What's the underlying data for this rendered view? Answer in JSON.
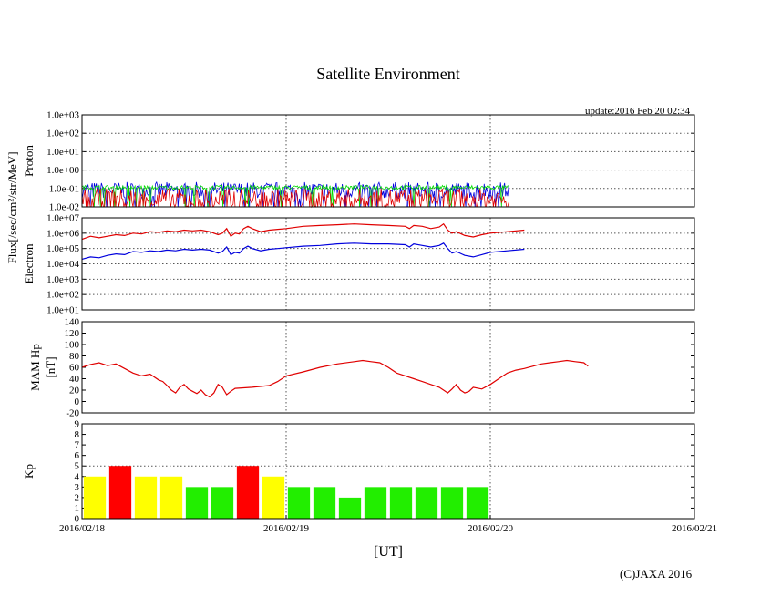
{
  "title": "Satellite Environment",
  "update_text": "update:2016 Feb 20 02:34",
  "copyright": "(C)JAXA 2016",
  "x_axis": {
    "label": "[UT]",
    "range_hours": [
      0,
      72
    ],
    "ticks": [
      {
        "hour": 0,
        "label": "2016/02/18"
      },
      {
        "hour": 24,
        "label": "2016/02/19"
      },
      {
        "hour": 48,
        "label": "2016/02/20"
      },
      {
        "hour": 72,
        "label": "2016/02/21"
      }
    ]
  },
  "flux_label": "Flux[/sec/cm²/str/MeV]",
  "colors": {
    "red": "#e00000",
    "blue": "#0000dd",
    "green": "#00dd00",
    "yellow": "#ffff00",
    "kp_red": "#ff0000",
    "kp_green": "#22ee00"
  },
  "chart_data": [
    {
      "name": "proton",
      "type": "line",
      "ylabel": "Proton",
      "yscale": "log",
      "ylim_exp": [
        -2,
        3
      ],
      "yticks": [
        "1.0e-02",
        "1.0e-01",
        "1.0e+00",
        "1.0e+01",
        "1.0e+02",
        "1.0e+03"
      ],
      "x_end_hours": 50.2,
      "series": [
        {
          "name": "blue",
          "color": "#0000dd",
          "base_exp": -1.1,
          "noise": 0.45
        },
        {
          "name": "green",
          "color": "#00dd00",
          "base_exp": -0.95,
          "noise": 0.12
        },
        {
          "name": "red",
          "color": "#e00000",
          "base_exp": -1.6,
          "noise": 0.6
        }
      ]
    },
    {
      "name": "electron",
      "type": "line",
      "ylabel": "Electron",
      "yscale": "log",
      "ylim_exp": [
        1,
        7
      ],
      "yticks": [
        "1.0e+01",
        "1.0e+02",
        "1.0e+03",
        "1.0e+04",
        "1.0e+05",
        "1.0e+06",
        "1.0e+07"
      ],
      "series": [
        {
          "name": "red",
          "color": "#e00000",
          "points": [
            [
              0,
              5.6
            ],
            [
              1,
              5.8
            ],
            [
              2,
              5.7
            ],
            [
              3,
              5.8
            ],
            [
              4,
              5.9
            ],
            [
              5,
              5.85
            ],
            [
              6,
              6.0
            ],
            [
              7,
              5.95
            ],
            [
              8,
              6.1
            ],
            [
              9,
              6.05
            ],
            [
              10,
              6.15
            ],
            [
              11,
              6.1
            ],
            [
              12,
              6.2
            ],
            [
              13,
              6.15
            ],
            [
              14,
              6.2
            ],
            [
              15,
              6.1
            ],
            [
              16,
              5.9
            ],
            [
              16.5,
              6.0
            ],
            [
              17,
              6.3
            ],
            [
              17.5,
              5.8
            ],
            [
              18,
              6.0
            ],
            [
              18.5,
              5.95
            ],
            [
              19,
              6.3
            ],
            [
              19.5,
              6.45
            ],
            [
              20,
              6.3
            ],
            [
              21,
              6.1
            ],
            [
              22,
              6.2
            ],
            [
              23,
              6.25
            ],
            [
              24,
              6.3
            ],
            [
              26,
              6.45
            ],
            [
              28,
              6.5
            ],
            [
              30,
              6.55
            ],
            [
              32,
              6.6
            ],
            [
              34,
              6.55
            ],
            [
              36,
              6.5
            ],
            [
              38,
              6.45
            ],
            [
              38.5,
              6.3
            ],
            [
              39,
              6.5
            ],
            [
              40,
              6.45
            ],
            [
              41,
              6.3
            ],
            [
              42,
              6.4
            ],
            [
              42.5,
              6.6
            ],
            [
              43,
              6.2
            ],
            [
              43.5,
              6.0
            ],
            [
              44,
              6.1
            ],
            [
              45,
              5.85
            ],
            [
              46,
              5.75
            ],
            [
              47,
              5.9
            ],
            [
              48,
              6.0
            ],
            [
              50,
              6.1
            ],
            [
              52,
              6.2
            ]
          ]
        },
        {
          "name": "blue",
          "color": "#0000dd",
          "points": [
            [
              0,
              4.3
            ],
            [
              1,
              4.45
            ],
            [
              2,
              4.4
            ],
            [
              3,
              4.55
            ],
            [
              4,
              4.65
            ],
            [
              5,
              4.6
            ],
            [
              6,
              4.8
            ],
            [
              7,
              4.75
            ],
            [
              8,
              4.85
            ],
            [
              9,
              4.8
            ],
            [
              10,
              4.9
            ],
            [
              11,
              4.85
            ],
            [
              12,
              4.95
            ],
            [
              13,
              4.9
            ],
            [
              14,
              4.95
            ],
            [
              15,
              4.9
            ],
            [
              16,
              4.7
            ],
            [
              16.5,
              4.8
            ],
            [
              17,
              5.1
            ],
            [
              17.5,
              4.6
            ],
            [
              18,
              4.75
            ],
            [
              18.5,
              4.7
            ],
            [
              19,
              5.0
            ],
            [
              19.5,
              5.15
            ],
            [
              20,
              5.0
            ],
            [
              21,
              4.85
            ],
            [
              22,
              4.95
            ],
            [
              23,
              5.0
            ],
            [
              24,
              5.05
            ],
            [
              26,
              5.15
            ],
            [
              28,
              5.2
            ],
            [
              30,
              5.3
            ],
            [
              32,
              5.35
            ],
            [
              34,
              5.3
            ],
            [
              36,
              5.3
            ],
            [
              38,
              5.25
            ],
            [
              38.5,
              5.1
            ],
            [
              39,
              5.3
            ],
            [
              40,
              5.2
            ],
            [
              41,
              5.1
            ],
            [
              42,
              5.2
            ],
            [
              42.5,
              5.35
            ],
            [
              43,
              5.0
            ],
            [
              43.5,
              4.7
            ],
            [
              44,
              4.8
            ],
            [
              45,
              4.55
            ],
            [
              46,
              4.45
            ],
            [
              47,
              4.6
            ],
            [
              48,
              4.75
            ],
            [
              50,
              4.85
            ],
            [
              52,
              4.95
            ]
          ]
        }
      ]
    },
    {
      "name": "mam_hp",
      "type": "line",
      "ylabel": "MAM Hp",
      "ylabel2": "[nT]",
      "ylim": [
        -20,
        140
      ],
      "yticks": [
        -20,
        0,
        20,
        40,
        60,
        80,
        100,
        120,
        140
      ],
      "series": [
        {
          "name": "hp",
          "color": "#e00000",
          "points": [
            [
              0,
              60
            ],
            [
              1,
              65
            ],
            [
              2,
              68
            ],
            [
              3,
              63
            ],
            [
              4,
              66
            ],
            [
              5,
              58
            ],
            [
              6,
              50
            ],
            [
              7,
              45
            ],
            [
              8,
              48
            ],
            [
              9,
              38
            ],
            [
              9.5,
              35
            ],
            [
              10,
              28
            ],
            [
              10.5,
              20
            ],
            [
              11,
              15
            ],
            [
              11.5,
              25
            ],
            [
              12,
              30
            ],
            [
              12.5,
              22
            ],
            [
              13,
              18
            ],
            [
              13.5,
              14
            ],
            [
              14,
              20
            ],
            [
              14.5,
              12
            ],
            [
              15,
              8
            ],
            [
              15.5,
              15
            ],
            [
              16,
              30
            ],
            [
              16.5,
              25
            ],
            [
              17,
              12
            ],
            [
              17.5,
              18
            ],
            [
              18,
              23
            ],
            [
              20,
              25
            ],
            [
              22,
              28
            ],
            [
              23,
              35
            ],
            [
              24,
              45
            ],
            [
              26,
              52
            ],
            [
              28,
              60
            ],
            [
              30,
              66
            ],
            [
              32,
              70
            ],
            [
              33,
              72
            ],
            [
              34,
              70
            ],
            [
              35,
              68
            ],
            [
              36,
              60
            ],
            [
              37,
              50
            ],
            [
              38,
              45
            ],
            [
              39,
              40
            ],
            [
              40,
              35
            ],
            [
              41,
              30
            ],
            [
              42,
              25
            ],
            [
              42.5,
              20
            ],
            [
              43,
              15
            ],
            [
              43.5,
              22
            ],
            [
              44,
              30
            ],
            [
              44.5,
              20
            ],
            [
              45,
              15
            ],
            [
              45.5,
              18
            ],
            [
              46,
              25
            ],
            [
              47,
              22
            ],
            [
              48,
              30
            ],
            [
              49,
              40
            ],
            [
              50,
              50
            ],
            [
              51,
              55
            ],
            [
              52,
              58
            ],
            [
              53,
              62
            ],
            [
              54,
              66
            ],
            [
              55,
              68
            ],
            [
              56,
              70
            ],
            [
              57,
              72
            ],
            [
              58,
              70
            ],
            [
              59,
              68
            ],
            [
              59.5,
              62
            ]
          ]
        }
      ]
    },
    {
      "name": "kp",
      "type": "bar",
      "ylabel": "Kp",
      "ylim": [
        0,
        9
      ],
      "yticks": [
        0,
        1,
        2,
        3,
        4,
        5,
        6,
        7,
        8,
        9
      ],
      "bar_width_hours": 2.6,
      "bars": [
        {
          "start": 0,
          "value": 4,
          "color": "#ffff00"
        },
        {
          "start": 3,
          "value": 5,
          "color": "#ff0000"
        },
        {
          "start": 6,
          "value": 4,
          "color": "#ffff00"
        },
        {
          "start": 9,
          "value": 4,
          "color": "#ffff00"
        },
        {
          "start": 12,
          "value": 3,
          "color": "#22ee00"
        },
        {
          "start": 15,
          "value": 3,
          "color": "#22ee00"
        },
        {
          "start": 18,
          "value": 5,
          "color": "#ff0000"
        },
        {
          "start": 21,
          "value": 4,
          "color": "#ffff00"
        },
        {
          "start": 24,
          "value": 3,
          "color": "#22ee00"
        },
        {
          "start": 27,
          "value": 3,
          "color": "#22ee00"
        },
        {
          "start": 30,
          "value": 2,
          "color": "#22ee00"
        },
        {
          "start": 33,
          "value": 3,
          "color": "#22ee00"
        },
        {
          "start": 36,
          "value": 3,
          "color": "#22ee00"
        },
        {
          "start": 39,
          "value": 3,
          "color": "#22ee00"
        },
        {
          "start": 42,
          "value": 3,
          "color": "#22ee00"
        },
        {
          "start": 45,
          "value": 3,
          "color": "#22ee00"
        }
      ]
    }
  ]
}
